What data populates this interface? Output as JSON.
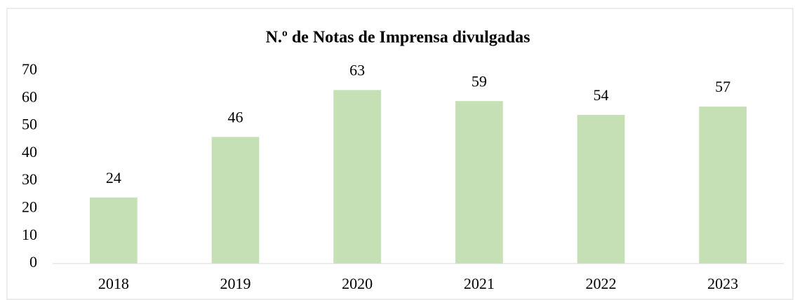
{
  "chart_data": {
    "type": "bar",
    "title": "N.º de Notas de Imprensa divulgadas",
    "categories": [
      "2018",
      "2019",
      "2020",
      "2021",
      "2022",
      "2023"
    ],
    "values": [
      24,
      46,
      63,
      59,
      54,
      57
    ],
    "color": "#c5e0b4",
    "ylim": [
      0,
      70
    ],
    "yticks": [
      0,
      10,
      20,
      30,
      40,
      50,
      60,
      70
    ],
    "grid": false
  }
}
